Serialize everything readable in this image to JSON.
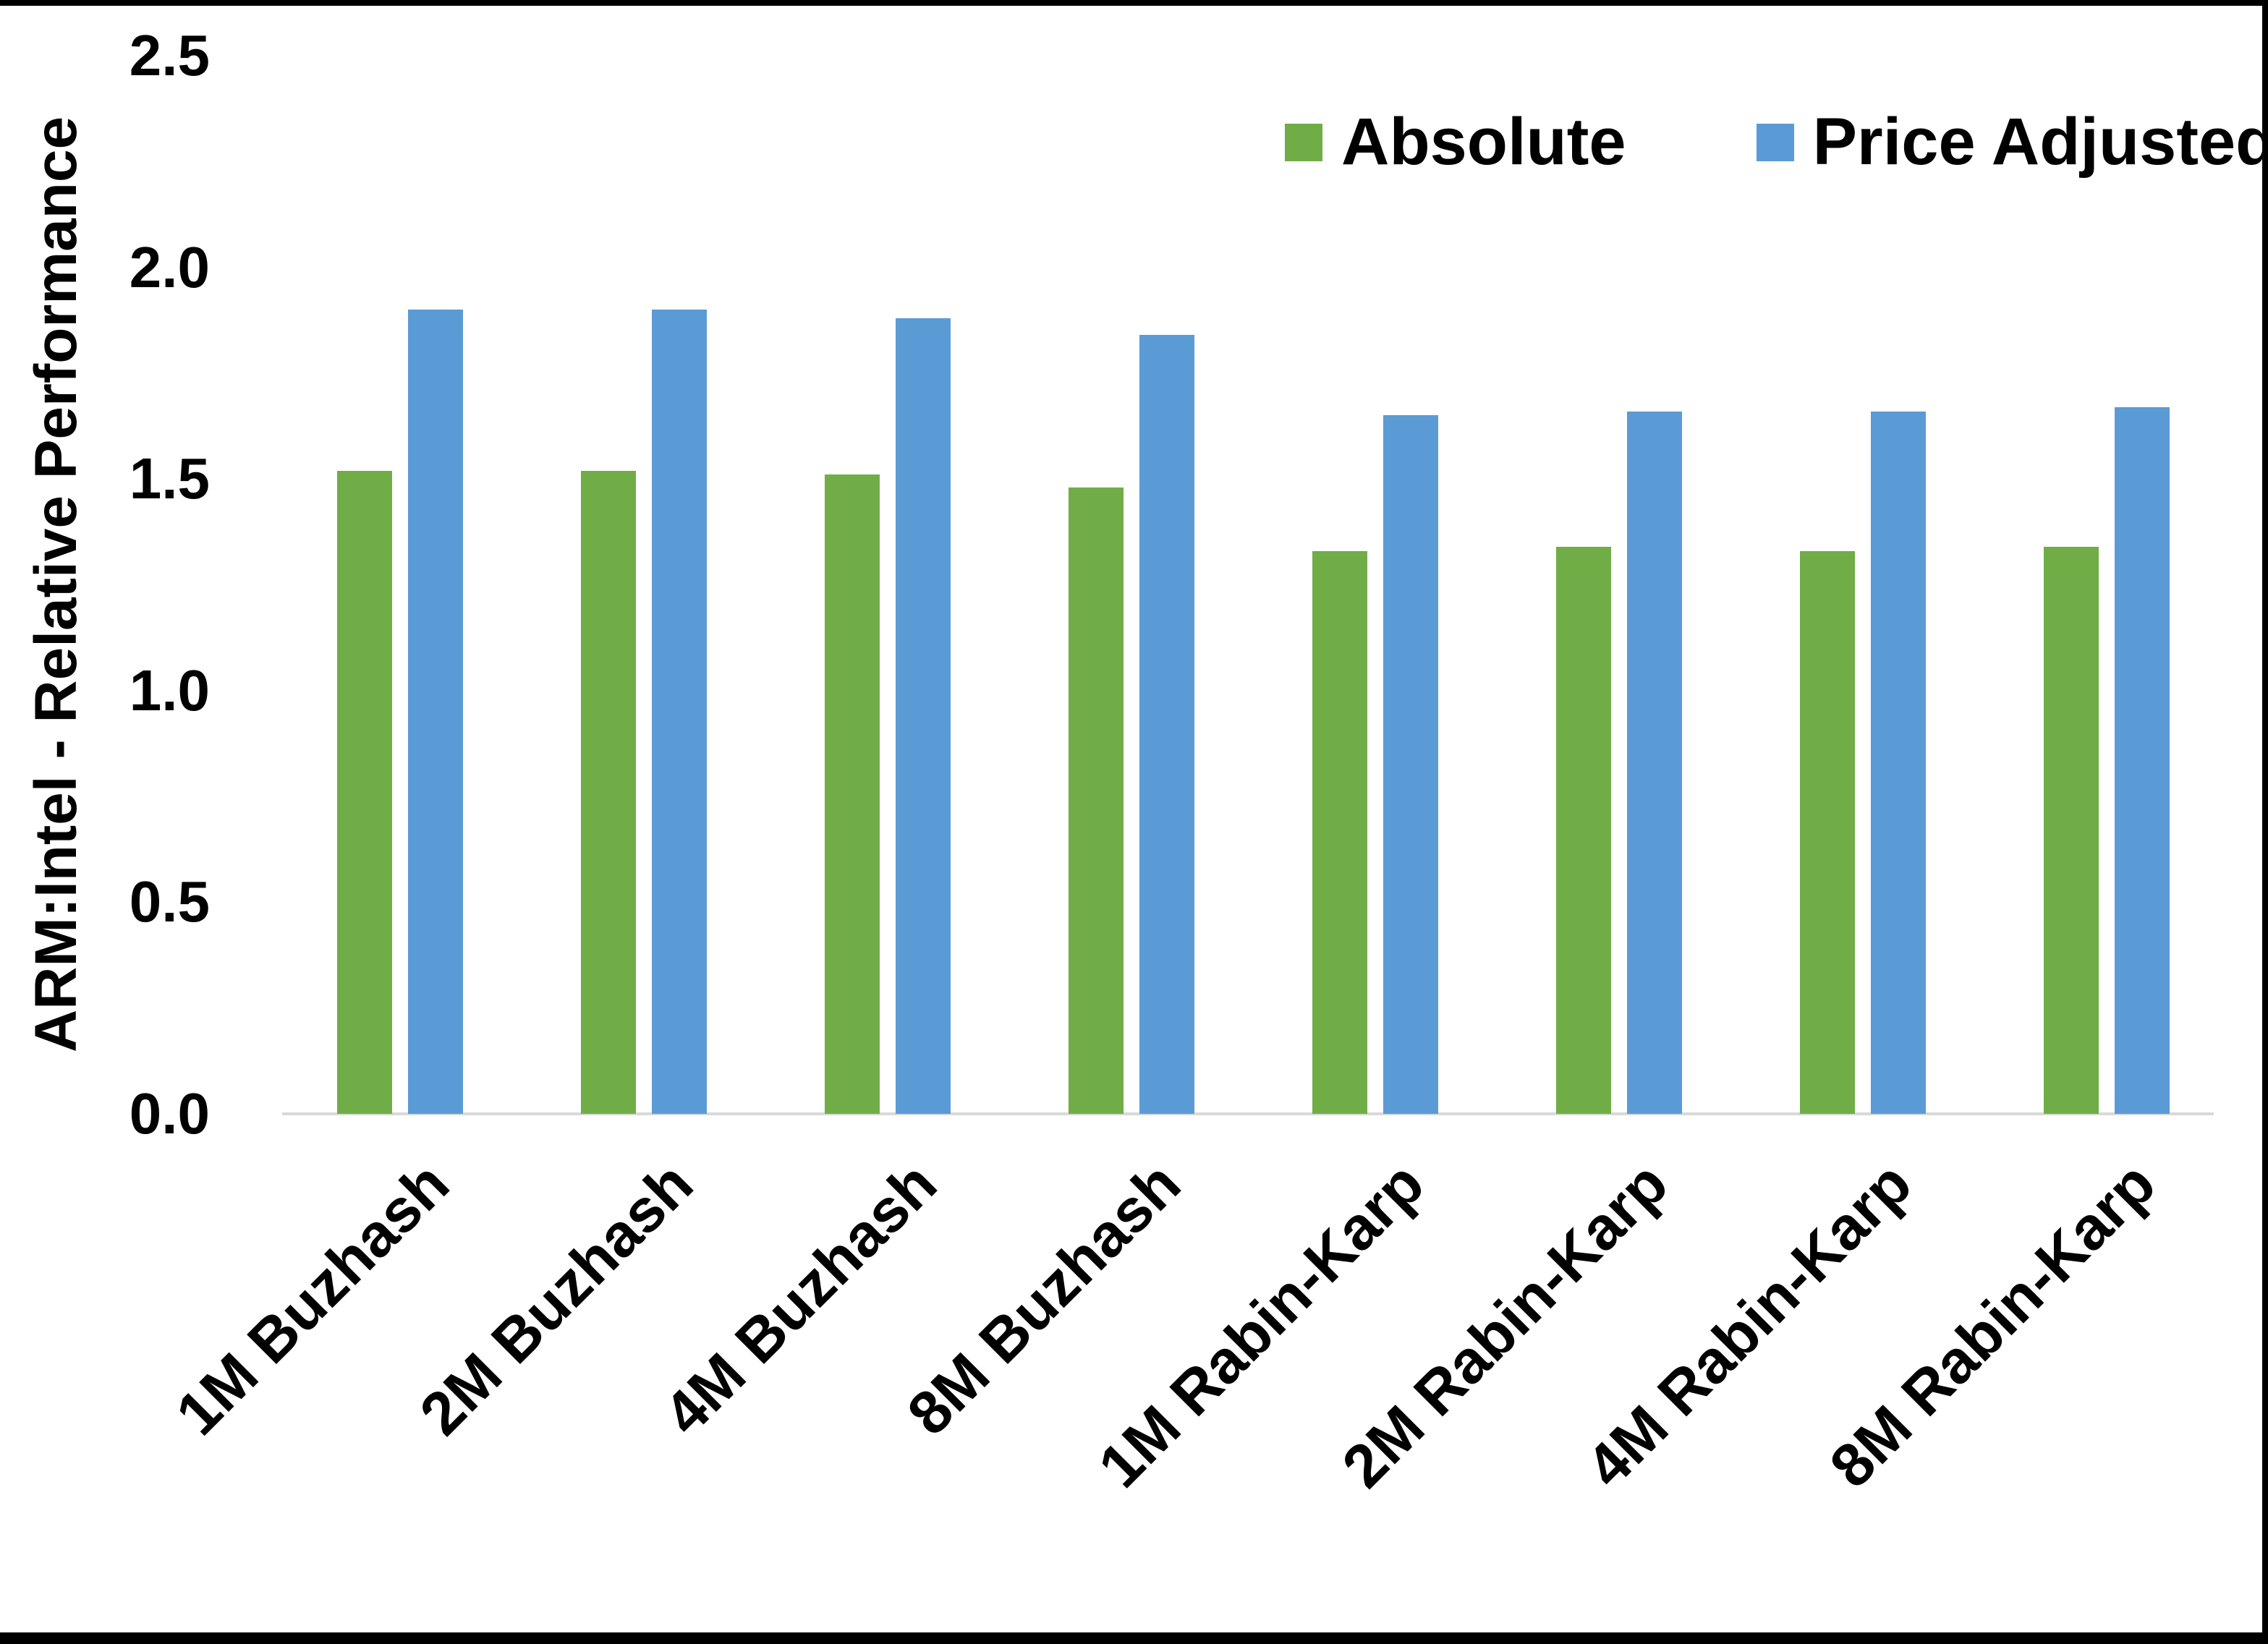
{
  "chart_data": {
    "type": "bar",
    "title": "",
    "categories": [
      "1M Buzhash",
      "2M Buzhash",
      "4M Buzhash",
      "8M Buzhash",
      "1M Rabin-Karp",
      "2M Rabin-Karp",
      "4M Rabin-Karp",
      "8M Rabin-Karp"
    ],
    "series": [
      {
        "name": "Absolute",
        "color": "#70AD47",
        "values": [
          1.52,
          1.52,
          1.51,
          1.48,
          1.33,
          1.34,
          1.33,
          1.34
        ]
      },
      {
        "name": "Price Adjusted",
        "color": "#5B9BD5",
        "values": [
          1.9,
          1.9,
          1.88,
          1.84,
          1.65,
          1.66,
          1.66,
          1.67
        ]
      }
    ],
    "xlabel": "",
    "ylabel": "ARM:Intel - Relative Performance",
    "ylim": [
      0,
      2.5
    ],
    "yticks": [
      0.0,
      0.5,
      1.0,
      1.5,
      2.0,
      2.5
    ],
    "ytick_labels": [
      "0.0",
      "0.5",
      "1.0",
      "1.5",
      "2.0",
      "2.5"
    ],
    "grid": false,
    "legend_position": "top-right",
    "axis_line_color": "#D9D9D9",
    "background_color": "#FFFFFF",
    "frame_border_color": "#000000",
    "text_color": "#000000"
  }
}
